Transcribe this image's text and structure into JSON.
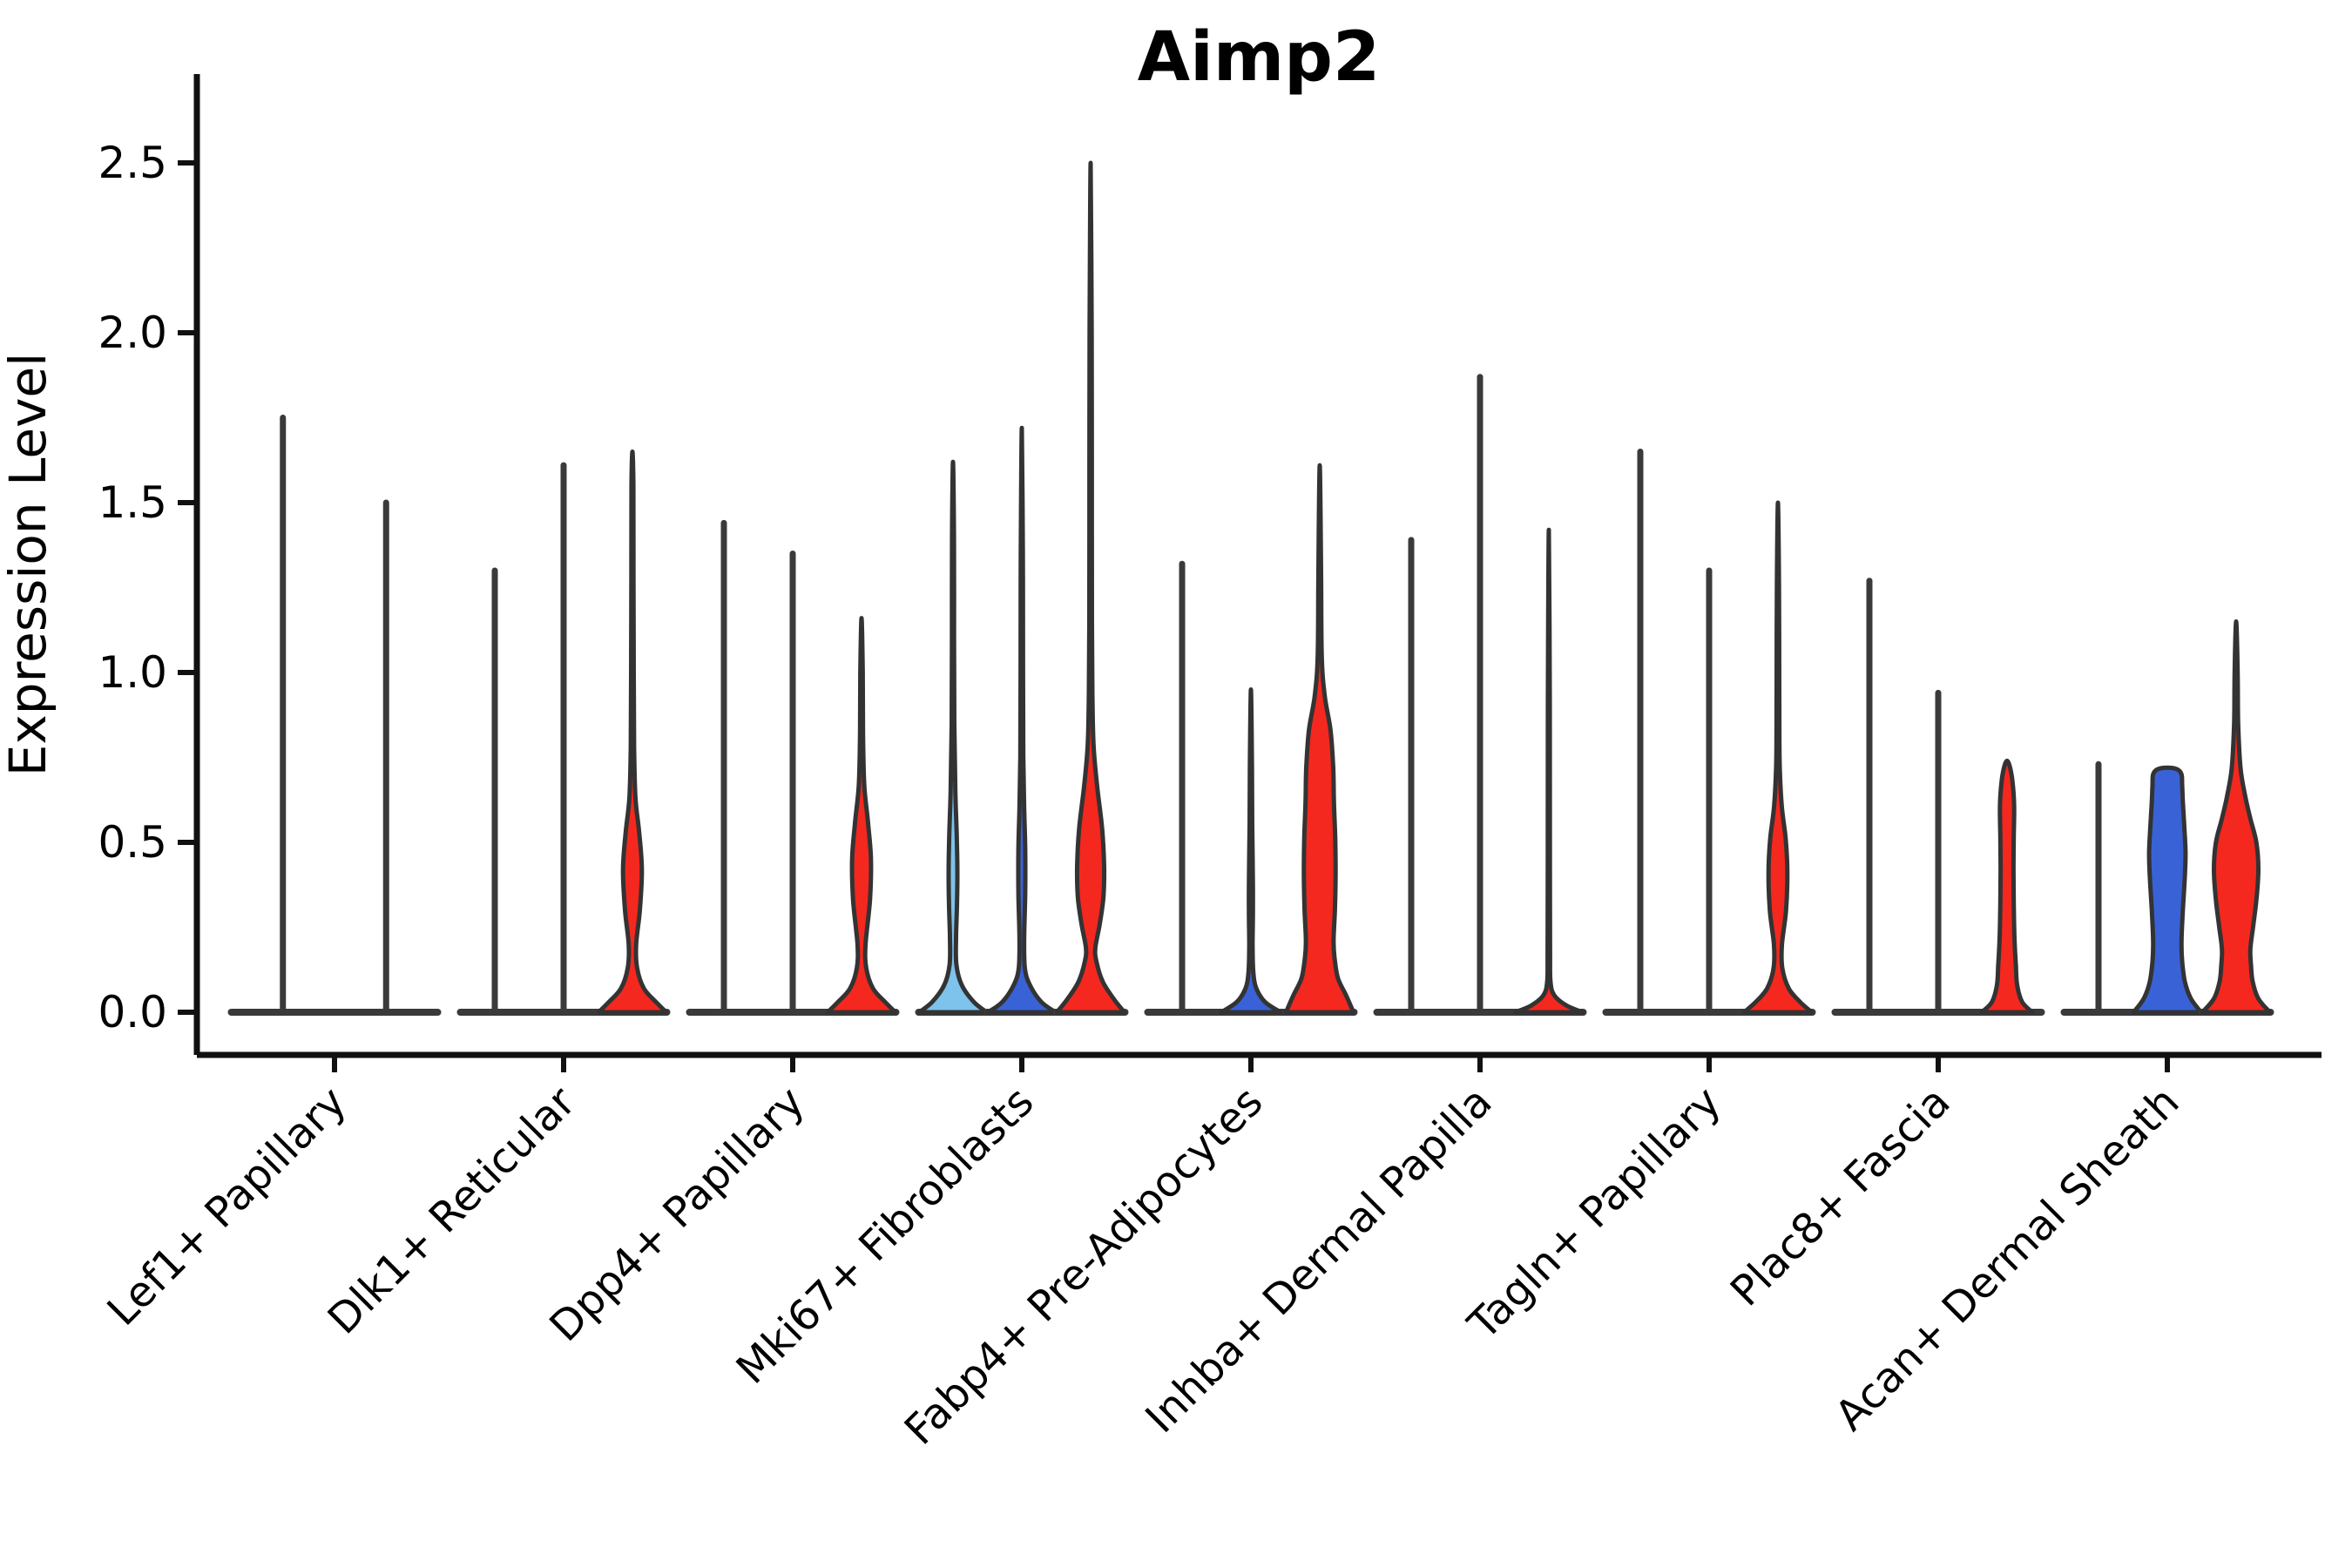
{
  "chart_data": {
    "type": "violin",
    "title": "Aimp2",
    "ylabel": "Expression Level",
    "xlabel": "",
    "yticks": [
      0.0,
      0.5,
      1.0,
      1.5,
      2.0,
      2.5
    ],
    "ylim": [
      0,
      2.76
    ],
    "grid": false,
    "legend": "none",
    "x_tick_rotation": 45,
    "palette": {
      "light_blue": "#7DC3EB",
      "blue": "#3A62D7",
      "red": "#F4281E",
      "line": "#3A3A3A"
    },
    "categories": [
      "Lef1+ Papillary",
      "Dlk1+ Reticular",
      "Dpp4+ Papillary",
      "Mki67+ Fibroblasts",
      "Fabp4+ Pre-Adipocytes",
      "Inhba+ Dermal Papilla",
      "Tagln+ Papillary",
      "Plac8+ Fascia",
      "Acan+ Dermal Sheath"
    ],
    "groups": [
      {
        "category": "Lef1+ Papillary",
        "violins": [
          {
            "kind": "line",
            "color": "line",
            "max": 1.75
          },
          {
            "kind": "line",
            "color": "line",
            "max": 1.5
          }
        ]
      },
      {
        "category": "Dlk1+ Reticular",
        "violins": [
          {
            "kind": "line",
            "color": "line",
            "max": 1.3
          },
          {
            "kind": "line",
            "color": "line",
            "max": 1.61
          },
          {
            "kind": "violin",
            "color": "red",
            "max": 1.65,
            "profile": [
              [
                0,
                1.0
              ],
              [
                0.03,
                0.7
              ],
              [
                0.07,
                0.34
              ],
              [
                0.13,
                0.14
              ],
              [
                0.2,
                0.11
              ],
              [
                0.3,
                0.22
              ],
              [
                0.42,
                0.28
              ],
              [
                0.53,
                0.2
              ],
              [
                0.63,
                0.09
              ],
              [
                0.78,
                0.05
              ],
              [
                1.0,
                0.04
              ],
              [
                1.3,
                0.032
              ],
              [
                1.55,
                0.028
              ],
              [
                1.65,
                0
              ]
            ]
          }
        ]
      },
      {
        "category": "Dpp4+ Papillary",
        "violins": [
          {
            "kind": "line",
            "color": "line",
            "max": 1.44
          },
          {
            "kind": "line",
            "color": "line",
            "max": 1.35
          },
          {
            "kind": "violin",
            "color": "red",
            "max": 1.16,
            "profile": [
              [
                0,
                1.0
              ],
              [
                0.03,
                0.7
              ],
              [
                0.07,
                0.34
              ],
              [
                0.13,
                0.14
              ],
              [
                0.2,
                0.12
              ],
              [
                0.33,
                0.25
              ],
              [
                0.45,
                0.28
              ],
              [
                0.56,
                0.19
              ],
              [
                0.67,
                0.08
              ],
              [
                0.82,
                0.045
              ],
              [
                1.0,
                0.035
              ],
              [
                1.16,
                0
              ]
            ]
          }
        ]
      },
      {
        "category": "Mki67+ Fibroblasts",
        "violins": [
          {
            "kind": "violin",
            "color": "light_blue",
            "max": 1.62,
            "profile": [
              [
                0,
                1.0
              ],
              [
                0.03,
                0.62
              ],
              [
                0.08,
                0.26
              ],
              [
                0.14,
                0.1
              ],
              [
                0.22,
                0.09
              ],
              [
                0.32,
                0.12
              ],
              [
                0.42,
                0.13
              ],
              [
                0.52,
                0.11
              ],
              [
                0.65,
                0.07
              ],
              [
                0.85,
                0.04
              ],
              [
                1.1,
                0.032
              ],
              [
                1.4,
                0.028
              ],
              [
                1.62,
                0
              ]
            ]
          },
          {
            "kind": "violin",
            "color": "blue",
            "max": 1.72,
            "profile": [
              [
                0,
                1.0
              ],
              [
                0.03,
                0.58
              ],
              [
                0.08,
                0.24
              ],
              [
                0.13,
                0.09
              ],
              [
                0.22,
                0.07
              ],
              [
                0.35,
                0.1
              ],
              [
                0.48,
                0.1
              ],
              [
                0.6,
                0.07
              ],
              [
                0.75,
                0.045
              ],
              [
                1.0,
                0.035
              ],
              [
                1.35,
                0.03
              ],
              [
                1.72,
                0
              ]
            ]
          },
          {
            "kind": "violin",
            "color": "red",
            "max": 2.5,
            "profile": [
              [
                0,
                1.0
              ],
              [
                0.04,
                0.68
              ],
              [
                0.09,
                0.36
              ],
              [
                0.15,
                0.17
              ],
              [
                0.19,
                0.14
              ],
              [
                0.26,
                0.27
              ],
              [
                0.34,
                0.38
              ],
              [
                0.43,
                0.4
              ],
              [
                0.54,
                0.34
              ],
              [
                0.66,
                0.2
              ],
              [
                0.78,
                0.09
              ],
              [
                0.92,
                0.055
              ],
              [
                1.15,
                0.04
              ],
              [
                1.6,
                0.035
              ],
              [
                2.0,
                0.03
              ],
              [
                2.5,
                0
              ]
            ]
          }
        ]
      },
      {
        "category": "Fabp4+ Pre-Adipocytes",
        "violins": [
          {
            "kind": "line",
            "color": "line",
            "max": 1.32
          },
          {
            "kind": "violin",
            "color": "blue",
            "max": 0.95,
            "profile": [
              [
                0,
                0.88
              ],
              [
                0.03,
                0.42
              ],
              [
                0.07,
                0.16
              ],
              [
                0.12,
                0.07
              ],
              [
                0.2,
                0.05
              ],
              [
                0.3,
                0.06
              ],
              [
                0.42,
                0.055
              ],
              [
                0.55,
                0.04
              ],
              [
                0.72,
                0.032
              ],
              [
                0.95,
                0
              ]
            ]
          },
          {
            "kind": "violin",
            "color": "red",
            "max": 1.61,
            "profile": [
              [
                0,
                1.0
              ],
              [
                0.05,
                0.78
              ],
              [
                0.1,
                0.54
              ],
              [
                0.16,
                0.44
              ],
              [
                0.21,
                0.41
              ],
              [
                0.3,
                0.45
              ],
              [
                0.4,
                0.47
              ],
              [
                0.51,
                0.46
              ],
              [
                0.62,
                0.42
              ],
              [
                0.72,
                0.4
              ],
              [
                0.83,
                0.32
              ],
              [
                0.93,
                0.15
              ],
              [
                1.05,
                0.06
              ],
              [
                1.3,
                0.04
              ],
              [
                1.61,
                0
              ]
            ]
          }
        ]
      },
      {
        "category": "Inhba+ Dermal Papilla",
        "violins": [
          {
            "kind": "line",
            "color": "line",
            "max": 1.39
          },
          {
            "kind": "line",
            "color": "line",
            "max": 1.87
          },
          {
            "kind": "violin",
            "color": "red",
            "max": 1.42,
            "profile": [
              [
                0,
                1.0
              ],
              [
                0.02,
                0.52
              ],
              [
                0.05,
                0.16
              ],
              [
                0.09,
                0.05
              ],
              [
                0.18,
                0.035
              ],
              [
                0.5,
                0.03
              ],
              [
                0.9,
                0.028
              ],
              [
                1.42,
                0
              ]
            ]
          }
        ]
      },
      {
        "category": "Tagln+ Papillary",
        "violins": [
          {
            "kind": "line",
            "color": "line",
            "max": 1.65
          },
          {
            "kind": "line",
            "color": "line",
            "max": 1.3
          },
          {
            "kind": "violin",
            "color": "red",
            "max": 1.5,
            "profile": [
              [
                0,
                1.0
              ],
              [
                0.03,
                0.66
              ],
              [
                0.07,
                0.32
              ],
              [
                0.13,
                0.13
              ],
              [
                0.2,
                0.12
              ],
              [
                0.3,
                0.24
              ],
              [
                0.41,
                0.28
              ],
              [
                0.51,
                0.23
              ],
              [
                0.61,
                0.11
              ],
              [
                0.74,
                0.05
              ],
              [
                0.95,
                0.04
              ],
              [
                1.25,
                0.032
              ],
              [
                1.5,
                0
              ]
            ]
          }
        ]
      },
      {
        "category": "Plac8+ Fascia",
        "violins": [
          {
            "kind": "line",
            "color": "line",
            "max": 1.27
          },
          {
            "kind": "line",
            "color": "line",
            "max": 0.94
          },
          {
            "kind": "violin",
            "color": "red",
            "max": 0.74,
            "profile": [
              [
                0,
                0.75
              ],
              [
                0.03,
                0.45
              ],
              [
                0.08,
                0.3
              ],
              [
                0.14,
                0.26
              ],
              [
                0.22,
                0.22
              ],
              [
                0.32,
                0.2
              ],
              [
                0.42,
                0.19
              ],
              [
                0.52,
                0.2
              ],
              [
                0.61,
                0.21
              ],
              [
                0.68,
                0.16
              ],
              [
                0.72,
                0.09
              ],
              [
                0.74,
                0
              ]
            ]
          }
        ]
      },
      {
        "category": "Acan+ Dermal Sheath",
        "violins": [
          {
            "kind": "line",
            "color": "line",
            "max": 0.73
          },
          {
            "kind": "violin",
            "color": "blue",
            "max": 0.72,
            "profile": [
              [
                0,
                1.0
              ],
              [
                0.04,
                0.7
              ],
              [
                0.09,
                0.52
              ],
              [
                0.15,
                0.44
              ],
              [
                0.21,
                0.42
              ],
              [
                0.3,
                0.46
              ],
              [
                0.4,
                0.52
              ],
              [
                0.47,
                0.54
              ],
              [
                0.55,
                0.5
              ],
              [
                0.62,
                0.46
              ],
              [
                0.67,
                0.44
              ],
              [
                0.7,
                0.42
              ],
              [
                0.715,
                0.3
              ],
              [
                0.72,
                0
              ]
            ]
          },
          {
            "kind": "violin",
            "color": "red",
            "max": 1.15,
            "profile": [
              [
                0,
                1.0
              ],
              [
                0.04,
                0.66
              ],
              [
                0.09,
                0.49
              ],
              [
                0.14,
                0.44
              ],
              [
                0.185,
                0.42
              ],
              [
                0.25,
                0.5
              ],
              [
                0.33,
                0.6
              ],
              [
                0.42,
                0.66
              ],
              [
                0.5,
                0.6
              ],
              [
                0.57,
                0.42
              ],
              [
                0.64,
                0.26
              ],
              [
                0.72,
                0.13
              ],
              [
                0.85,
                0.06
              ],
              [
                1.0,
                0.045
              ],
              [
                1.15,
                0
              ]
            ]
          }
        ]
      }
    ]
  }
}
